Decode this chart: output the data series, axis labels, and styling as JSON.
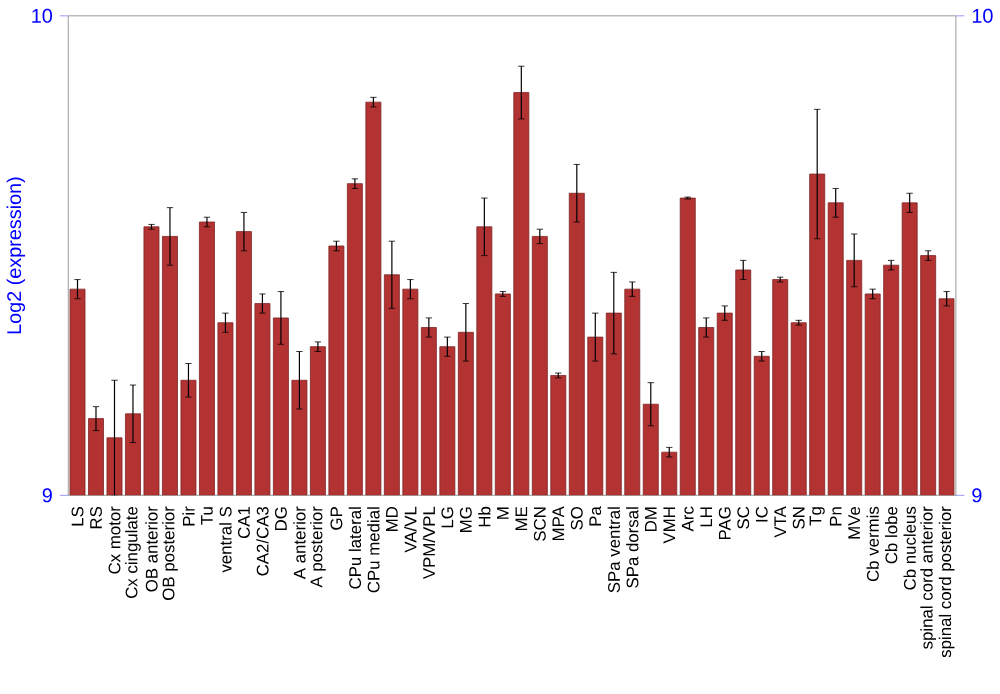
{
  "chart_data": {
    "type": "bar",
    "ylabel": "Log2 (expression)",
    "categories": [
      "LS",
      "RS",
      "Cx motor",
      "Cx cingulate",
      "OB anterior",
      "OB posterior",
      "Pir",
      "Tu",
      "ventral S",
      "CA1",
      "CA2/CA3",
      "DG",
      "A anterior",
      "A posterior",
      "GP",
      "CPu lateral",
      "CPu medial",
      "MD",
      "VA/VL",
      "VPM/VPL",
      "LG",
      "MG",
      "Hb",
      "M",
      "ME",
      "SCN",
      "MPA",
      "SO",
      "Pa",
      "SPa ventral",
      "SPa dorsal",
      "DM",
      "VMH",
      "Arc",
      "LH",
      "PAG",
      "SC",
      "IC",
      "VTA",
      "SN",
      "Tg",
      "Pn",
      "MVe",
      "Cb vermis",
      "Cb lobe",
      "Cb nucleus",
      "spinal cord anterior",
      "spinal cord posterior"
    ],
    "values": [
      9.43,
      9.16,
      9.12,
      9.17,
      9.56,
      9.54,
      9.24,
      9.57,
      9.36,
      9.55,
      9.4,
      9.37,
      9.24,
      9.31,
      9.52,
      9.65,
      9.82,
      9.46,
      9.43,
      9.35,
      9.31,
      9.34,
      9.56,
      9.42,
      9.84,
      9.54,
      9.25,
      9.63,
      9.33,
      9.38,
      9.43,
      9.19,
      9.09,
      9.62,
      9.35,
      9.38,
      9.47,
      9.29,
      9.45,
      9.36,
      9.67,
      9.61,
      9.49,
      9.42,
      9.48,
      9.61,
      9.5,
      9.41
    ],
    "errors": [
      0.02,
      0.025,
      0.12,
      0.06,
      0.005,
      0.06,
      0.035,
      0.01,
      0.02,
      0.04,
      0.02,
      0.055,
      0.06,
      0.01,
      0.01,
      0.01,
      0.01,
      0.07,
      0.02,
      0.02,
      0.02,
      0.06,
      0.06,
      0.005,
      0.055,
      0.015,
      0.005,
      0.06,
      0.05,
      0.085,
      0.015,
      0.045,
      0.01,
      0.002,
      0.02,
      0.015,
      0.02,
      0.01,
      0.005,
      0.005,
      0.135,
      0.03,
      0.055,
      0.01,
      0.01,
      0.02,
      0.01,
      0.015
    ],
    "color": "#b33333",
    "ylim": [
      9,
      10
    ],
    "yticks": [
      9,
      10
    ],
    "y2lim": [
      9,
      10
    ],
    "y2ticks": [
      9,
      10
    ]
  }
}
